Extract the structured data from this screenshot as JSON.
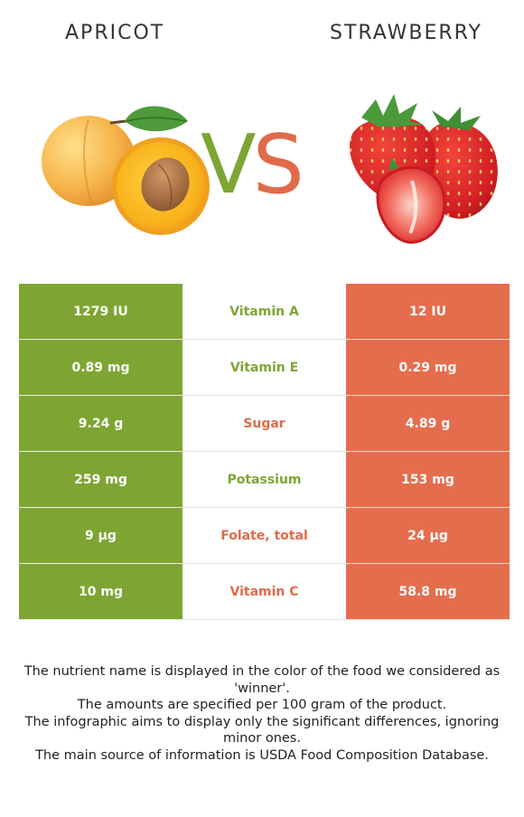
{
  "left_food": {
    "name": "APRICOT",
    "color": "#7ea533",
    "icon": "apricot-image"
  },
  "right_food": {
    "name": "STRAWBERRY",
    "color": "#e46d4d",
    "icon": "strawberry-image"
  },
  "vs": {
    "v": "V",
    "s": "S"
  },
  "rows": [
    {
      "nutrient": "Vitamin A",
      "left": "1279 IU",
      "right": "12 IU",
      "winner": "left"
    },
    {
      "nutrient": "Vitamin E",
      "left": "0.89 mg",
      "right": "0.29 mg",
      "winner": "left"
    },
    {
      "nutrient": "Sugar",
      "left": "9.24 g",
      "right": "4.89 g",
      "winner": "right"
    },
    {
      "nutrient": "Potassium",
      "left": "259 mg",
      "right": "153 mg",
      "winner": "left"
    },
    {
      "nutrient": "Folate, total",
      "left": "9 µg",
      "right": "24 µg",
      "winner": "right"
    },
    {
      "nutrient": "Vitamin C",
      "left": "10 mg",
      "right": "58.8 mg",
      "winner": "right"
    }
  ],
  "footer": [
    "The nutrient name is displayed in the color of the food we considered as 'winner'.",
    "The amounts are specified per 100 gram of the product.",
    "The infographic aims to display only the significant differences, ignoring minor ones.",
    "The main source of information is USDA Food Composition Database."
  ]
}
